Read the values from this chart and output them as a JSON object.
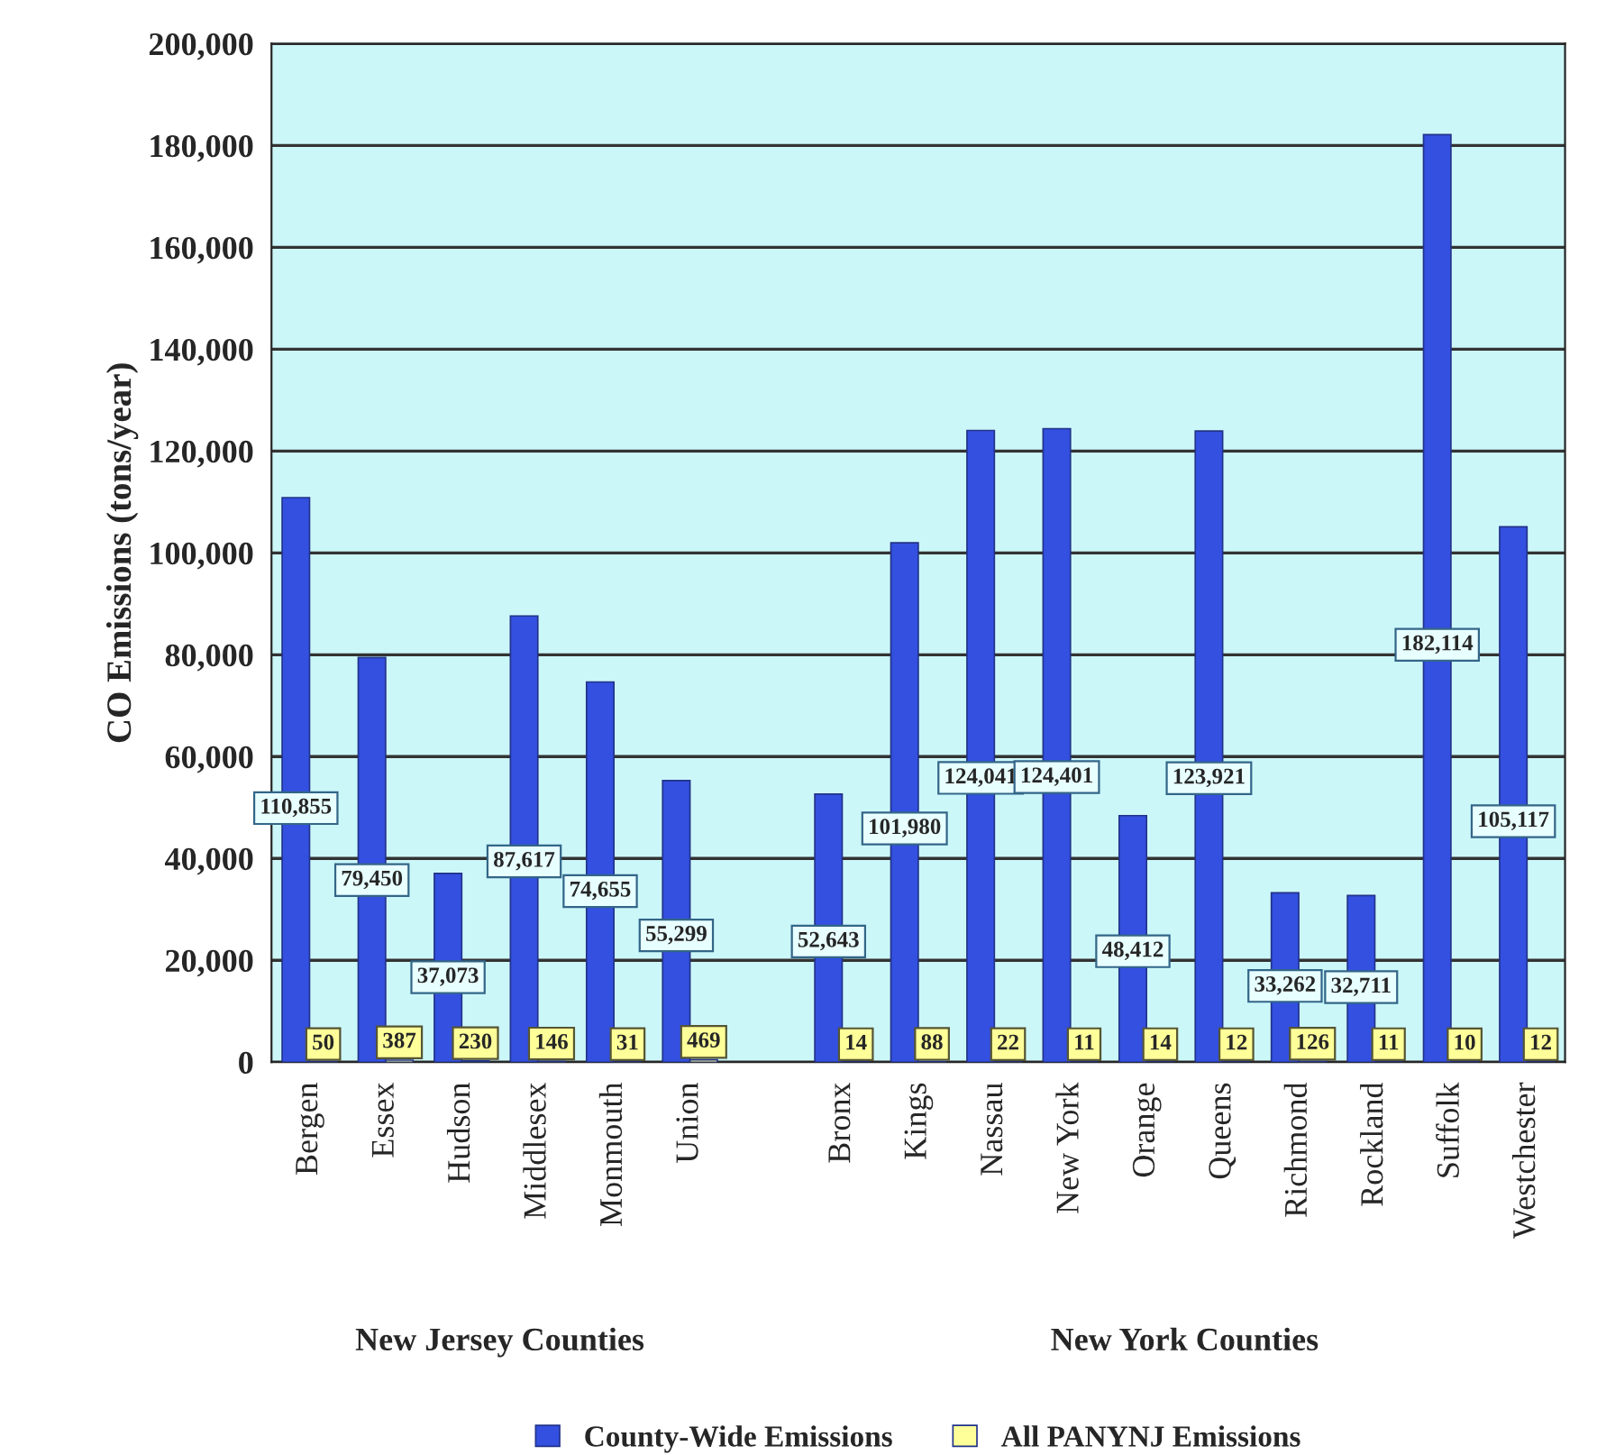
{
  "chart_data": {
    "type": "bar",
    "ylabel": "CO Emissions (tons/year)",
    "categories": [
      "Bergen",
      "Essex",
      "Hudson",
      "Middlesex",
      "Monmouth",
      "Union",
      null,
      "Bronx",
      "Kings",
      "Nassau",
      "New York",
      "Orange",
      "Queens",
      "Richmond",
      "Rockland",
      "Suffolk",
      "Westchester"
    ],
    "series": [
      {
        "name": "County-Wide Emissions",
        "color": "#3350e0",
        "values": [
          110855,
          79450,
          37073,
          87617,
          74655,
          55299,
          null,
          52643,
          101980,
          124041,
          124401,
          48412,
          123921,
          33262,
          32711,
          182114,
          105117
        ],
        "value_labels": [
          "110,855",
          "79,450",
          "37,073",
          "87,617",
          "74,655",
          "55,299",
          null,
          "52,643",
          "101,980",
          "124,041",
          "124,401",
          "48,412",
          "123,921",
          "33,262",
          "32,711",
          "182,114",
          "105,117"
        ]
      },
      {
        "name": "All PANYNJ Emissions",
        "color": "#ffff99",
        "values": [
          50,
          387,
          230,
          146,
          31,
          469,
          null,
          14,
          88,
          22,
          11,
          14,
          12,
          126,
          11,
          10,
          12
        ],
        "value_labels": [
          "50",
          "387",
          "230",
          "146",
          "31",
          "469",
          null,
          "14",
          "88",
          "22",
          "11",
          "14",
          "12",
          "126",
          "11",
          "10",
          "12"
        ]
      }
    ],
    "ylim": [
      0,
      200000
    ],
    "yticks": [
      {
        "value": 0,
        "label": "0"
      },
      {
        "value": 20000,
        "label": "20,000"
      },
      {
        "value": 40000,
        "label": "40,000"
      },
      {
        "value": 60000,
        "label": "60,000"
      },
      {
        "value": 80000,
        "label": "80,000"
      },
      {
        "value": 100000,
        "label": "100,000"
      },
      {
        "value": 120000,
        "label": "120,000"
      },
      {
        "value": 140000,
        "label": "140,000"
      },
      {
        "value": 160000,
        "label": "160,000"
      },
      {
        "value": 180000,
        "label": "180,000"
      },
      {
        "value": 200000,
        "label": "200,000"
      }
    ],
    "grid": "y",
    "legend": "bottom",
    "annotations": [
      "New Jersey Counties",
      "New York Counties"
    ]
  }
}
